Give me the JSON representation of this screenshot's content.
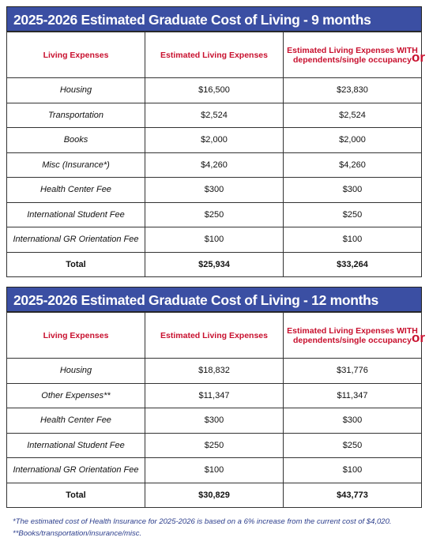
{
  "tables": [
    {
      "title": "2025-2026 Estimated Graduate Cost of Living - 9 months",
      "headers": [
        "Living Expenses",
        "Estimated Living Expenses",
        "Estimated Living Expenses WITH dependents/single occupancy"
      ],
      "or": "or",
      "rows": [
        [
          "Housing",
          "$16,500",
          "$23,830"
        ],
        [
          "Transportation",
          "$2,524",
          "$2,524"
        ],
        [
          "Books",
          "$2,000",
          "$2,000"
        ],
        [
          "Misc (Insurance*)",
          "$4,260",
          "$4,260"
        ],
        [
          "Health Center Fee",
          "$300",
          "$300"
        ],
        [
          "International Student Fee",
          "$250",
          "$250"
        ],
        [
          "International GR Orientation Fee",
          "$100",
          "$100"
        ]
      ],
      "total": [
        "Total",
        "$25,934",
        "$33,264"
      ]
    },
    {
      "title": "2025-2026 Estimated Graduate Cost of Living - 12 months",
      "headers": [
        "Living Expenses",
        "Estimated Living Expenses",
        "Estimated Living Expenses WITH dependents/single occupancy"
      ],
      "or": "or",
      "rows": [
        [
          "Housing",
          "$18,832",
          "$31,776"
        ],
        [
          "Other Expenses**",
          "$11,347",
          "$11,347"
        ],
        [
          "Health Center Fee",
          "$300",
          "$300"
        ],
        [
          "International Student Fee",
          "$250",
          "$250"
        ],
        [
          "International GR Orientation Fee",
          "$100",
          "$100"
        ]
      ],
      "total": [
        "Total",
        "$30,829",
        "$43,773"
      ]
    }
  ],
  "footnotes": [
    "*The estimated cost of Health Insurance for 2025-2026 is based on a 6% increase from the current cost of $4,020.",
    "**Books/transportation/insurance/misc."
  ]
}
